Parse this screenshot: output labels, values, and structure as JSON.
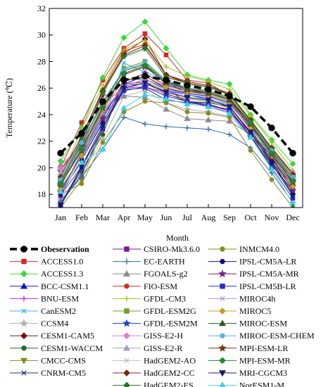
{
  "chart_data": {
    "type": "line",
    "xlabel": "Month",
    "ylabel": "Temperature (℃)",
    "categories": [
      "Jan",
      "Feb",
      "Mar",
      "Apr",
      "May",
      "Jun",
      "Jul",
      "Aug",
      "Sep",
      "Oct",
      "Nov",
      "Dec"
    ],
    "ylim": [
      17,
      32
    ],
    "yticks": [
      18,
      20,
      22,
      24,
      26,
      28,
      30,
      32
    ],
    "grid": false,
    "legend_position": "below",
    "observation": {
      "name": "Obeservation",
      "color": "#000000",
      "marker": "circle",
      "values": [
        21.1,
        22.6,
        25.0,
        26.6,
        26.9,
        26.6,
        26.2,
        25.9,
        25.4,
        24.6,
        23.0,
        21.1
      ]
    },
    "series": [
      {
        "name": "ACCESS1.0",
        "color": "#d62728",
        "marker": "square",
        "values": [
          20.0,
          23.4,
          26.6,
          29.0,
          30.1,
          28.5,
          26.6,
          26.4,
          25.4,
          23.6,
          21.3,
          19.5
        ]
      },
      {
        "name": "ACCESS1.3",
        "color": "#3dd63d",
        "marker": "diamond",
        "values": [
          20.5,
          23.0,
          26.8,
          29.8,
          31.0,
          29.0,
          27.0,
          26.6,
          26.3,
          24.0,
          22.1,
          20.3
        ]
      },
      {
        "name": "BCC-CSM1.1",
        "color": "#1010e0",
        "marker": "triangle",
        "values": [
          18.2,
          21.1,
          23.9,
          26.2,
          26.3,
          25.8,
          25.5,
          25.2,
          24.6,
          22.6,
          20.8,
          18.8
        ]
      },
      {
        "name": "BNU-ESM",
        "color": "#b030c0",
        "marker": "plus",
        "values": [
          19.0,
          21.2,
          24.1,
          26.0,
          26.1,
          25.6,
          25.0,
          24.6,
          24.2,
          22.4,
          20.6,
          18.9
        ]
      },
      {
        "name": "CanESM2",
        "color": "#3ab0e6",
        "marker": "x",
        "values": [
          18.5,
          20.8,
          23.5,
          27.9,
          27.2,
          26.6,
          25.5,
          25.1,
          24.8,
          23.1,
          20.7,
          18.6
        ]
      },
      {
        "name": "CCSM4",
        "color": "#b0b0b0",
        "marker": "star",
        "values": [
          17.6,
          19.7,
          22.1,
          25.4,
          25.8,
          24.9,
          24.4,
          24.2,
          23.9,
          22.3,
          20.2,
          18.2
        ]
      },
      {
        "name": "CESM1-CAM5",
        "color": "#7a1010",
        "marker": "diamond",
        "values": [
          19.8,
          22.0,
          25.5,
          28.6,
          29.7,
          27.0,
          26.4,
          26.1,
          25.5,
          23.6,
          21.4,
          19.4
        ]
      },
      {
        "name": "CESM1-WACCM",
        "color": "#1f6a1f",
        "marker": "circle",
        "values": [
          17.2,
          19.8,
          22.5,
          26.6,
          26.7,
          25.9,
          25.0,
          24.9,
          24.6,
          22.7,
          20.6,
          18.6
        ]
      },
      {
        "name": "CMCC-CMS",
        "color": "#8a8a1a",
        "marker": "triangle-down",
        "values": [
          17.0,
          19.1,
          22.9,
          26.0,
          26.4,
          25.5,
          25.2,
          25.0,
          24.5,
          22.4,
          20.3,
          18.5
        ]
      },
      {
        "name": "CNRM-CM5",
        "color": "#2a2a70",
        "marker": "x",
        "values": [
          17.3,
          19.5,
          23.0,
          25.9,
          26.0,
          25.1,
          24.9,
          24.7,
          24.4,
          22.3,
          20.2,
          18.3
        ]
      },
      {
        "name": "CSIRO-Mk3.6.0",
        "color": "#7a1a8a",
        "marker": "square",
        "values": [
          17.9,
          20.1,
          22.9,
          26.3,
          26.5,
          25.6,
          25.0,
          24.7,
          24.3,
          22.6,
          20.4,
          18.7
        ]
      },
      {
        "name": "EC-EARTH",
        "color": "#2a6aa0",
        "marker": "plus",
        "values": [
          17.5,
          19.3,
          21.4,
          23.8,
          23.3,
          23.1,
          23.0,
          22.9,
          22.5,
          21.5,
          19.6,
          17.4
        ]
      },
      {
        "name": "FGOALS-g2",
        "color": "#8a8a8a",
        "marker": "triangle",
        "values": [
          20.2,
          21.6,
          24.0,
          25.4,
          25.3,
          24.4,
          23.7,
          23.6,
          23.5,
          22.5,
          21.1,
          19.7
        ]
      },
      {
        "name": "FIO-ESM",
        "color": "#c8321e",
        "marker": "circle",
        "values": [
          19.5,
          22.3,
          25.9,
          28.8,
          29.3,
          27.0,
          26.3,
          26.1,
          25.6,
          23.5,
          21.5,
          19.6
        ]
      },
      {
        "name": "GFDL-CM3",
        "color": "#a0c020",
        "marker": "plus",
        "values": [
          19.2,
          22.9,
          26.2,
          28.9,
          29.6,
          27.6,
          26.9,
          26.5,
          25.9,
          23.9,
          21.9,
          19.8
        ]
      },
      {
        "name": "GFDL-ESM2G",
        "color": "#6aa02a",
        "marker": "square",
        "values": [
          18.8,
          21.7,
          24.6,
          27.5,
          28.0,
          26.6,
          26.0,
          25.7,
          25.1,
          23.3,
          21.0,
          19.2
        ]
      },
      {
        "name": "GFDL-ESM2M",
        "color": "#2040c0",
        "marker": "star",
        "values": [
          18.6,
          21.6,
          24.3,
          27.1,
          27.7,
          26.3,
          25.8,
          25.5,
          25.0,
          23.2,
          20.9,
          19.0
        ]
      },
      {
        "name": "GISS-E2-H",
        "color": "#e07ad0",
        "marker": "diamond",
        "values": [
          19.9,
          22.1,
          24.7,
          26.1,
          26.7,
          26.0,
          25.5,
          25.3,
          24.8,
          23.2,
          21.3,
          19.6
        ]
      },
      {
        "name": "GISS-E2-R",
        "color": "#a0a0d0",
        "marker": "triangle",
        "values": [
          19.6,
          21.9,
          24.4,
          25.9,
          26.4,
          25.8,
          25.3,
          25.1,
          24.7,
          23.0,
          21.2,
          19.5
        ]
      },
      {
        "name": "HadGEM2-AO",
        "color": "#c0c0c0",
        "marker": "x",
        "values": [
          19.4,
          22.2,
          25.6,
          28.3,
          28.9,
          26.9,
          26.3,
          26.0,
          25.4,
          23.5,
          21.4,
          19.4
        ]
      },
      {
        "name": "HadGEM2-CC",
        "color": "#7a2a10",
        "marker": "diamond",
        "values": [
          19.3,
          22.4,
          25.8,
          28.5,
          29.2,
          27.0,
          26.5,
          26.2,
          25.6,
          23.6,
          21.5,
          19.5
        ]
      },
      {
        "name": "HadGEM2-ES",
        "color": "#207a20",
        "marker": "diamond",
        "values": [
          19.1,
          22.1,
          25.7,
          28.4,
          29.0,
          26.8,
          26.4,
          26.1,
          25.5,
          23.5,
          21.4,
          19.3
        ]
      },
      {
        "name": "INMCM4.0",
        "color": "#8a8a20",
        "marker": "circle",
        "values": [
          18.0,
          18.8,
          21.9,
          24.2,
          25.0,
          24.9,
          24.2,
          24.1,
          23.8,
          21.3,
          19.1,
          17.0
        ]
      },
      {
        "name": "IPSL-CM5A-LR",
        "color": "#10107a",
        "marker": "circle",
        "values": [
          18.0,
          20.6,
          23.4,
          26.3,
          26.9,
          26.0,
          25.6,
          25.4,
          24.9,
          22.9,
          20.5,
          18.0
        ]
      },
      {
        "name": "IPSL-CM5A-MR",
        "color": "#7a207a",
        "marker": "star",
        "values": [
          18.2,
          20.9,
          23.7,
          26.5,
          27.1,
          26.2,
          25.8,
          25.6,
          25.1,
          23.1,
          20.8,
          18.3
        ]
      },
      {
        "name": "IPSL-CM5B-LR",
        "color": "#2a2ad0",
        "marker": "square",
        "values": [
          17.1,
          20.0,
          23.0,
          25.8,
          26.1,
          25.4,
          25.0,
          24.8,
          24.3,
          22.4,
          20.0,
          17.7
        ]
      },
      {
        "name": "MIROC4h",
        "color": "#b090e0",
        "marker": "x",
        "values": [
          19.0,
          21.5,
          24.2,
          26.1,
          26.5,
          25.9,
          25.5,
          25.3,
          24.8,
          23.0,
          21.0,
          19.0
        ]
      },
      {
        "name": "MIROC5",
        "color": "#c0a020",
        "marker": "diamond",
        "values": [
          18.4,
          20.9,
          24.4,
          26.6,
          26.9,
          26.1,
          25.7,
          25.5,
          25.0,
          23.0,
          20.9,
          18.6
        ]
      },
      {
        "name": "MIROC-ESM",
        "color": "#2a5a1a",
        "marker": "triangle",
        "values": [
          19.0,
          21.8,
          24.9,
          27.3,
          27.8,
          26.5,
          25.9,
          25.6,
          25.1,
          23.3,
          21.2,
          19.2
        ]
      },
      {
        "name": "MIROC-ESM-CHEM",
        "color": "#5ab0e6",
        "marker": "circle",
        "values": [
          19.1,
          21.9,
          25.0,
          27.4,
          27.9,
          26.6,
          26.0,
          25.7,
          25.2,
          23.4,
          21.3,
          19.3
        ]
      },
      {
        "name": "MPI-ESM-LR",
        "color": "#7a3010",
        "marker": "star",
        "values": [
          18.7,
          21.3,
          24.5,
          27.0,
          27.6,
          26.4,
          25.9,
          25.7,
          25.2,
          23.3,
          21.0,
          18.9
        ]
      },
      {
        "name": "MPI-ESM-MR",
        "color": "#208a30",
        "marker": "diamond",
        "values": [
          18.8,
          21.4,
          24.6,
          27.1,
          27.7,
          26.5,
          26.0,
          25.8,
          25.3,
          23.4,
          21.1,
          19.0
        ]
      },
      {
        "name": "MRI-CGCM3",
        "color": "#1a1a6a",
        "marker": "triangle-down",
        "values": [
          17.2,
          20.1,
          23.2,
          26.0,
          26.4,
          25.7,
          25.3,
          25.1,
          24.6,
          22.7,
          20.3,
          17.9
        ]
      },
      {
        "name": "NorESM1-M",
        "color": "#3ad0e6",
        "marker": "triangle",
        "values": [
          18.2,
          20.4,
          21.4,
          24.5,
          25.5,
          25.2,
          24.8,
          24.6,
          24.1,
          22.3,
          19.9,
          17.3
        ]
      }
    ]
  }
}
